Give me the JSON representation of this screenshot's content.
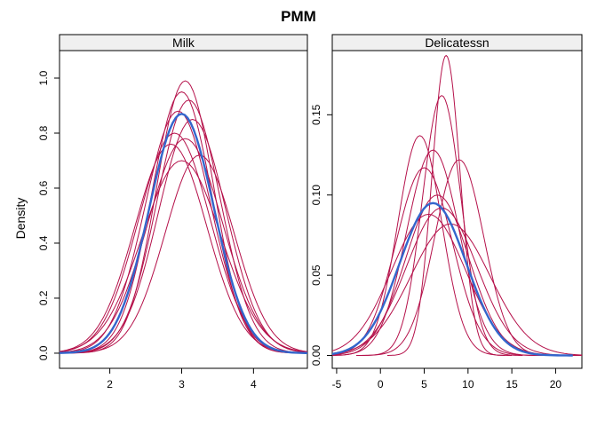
{
  "chart_data": {
    "type": "line",
    "title": "PMM",
    "ylabel": "Density",
    "colors": {
      "imputed": "#b5114a",
      "observed": "#3366cc"
    },
    "panels": [
      {
        "strip_label": "Milk",
        "xlim": [
          1.3,
          4.75
        ],
        "ylim": [
          -0.055,
          1.1
        ],
        "xticks": [
          2,
          3,
          4
        ],
        "yticks": [
          0.0,
          0.2,
          0.4,
          0.6,
          0.8,
          1.0
        ],
        "ytick_labels": [
          "0.0",
          "0.2",
          "0.4",
          "0.6",
          "0.8",
          "1.0"
        ],
        "observed": {
          "center": 3.0,
          "sd": 0.45,
          "peak": 0.87
        },
        "imputed": [
          {
            "center": 3.05,
            "sd": 0.4,
            "peak": 0.99
          },
          {
            "center": 3.0,
            "sd": 0.42,
            "peak": 0.95
          },
          {
            "center": 3.1,
            "sd": 0.44,
            "peak": 0.92
          },
          {
            "center": 2.95,
            "sd": 0.46,
            "peak": 0.88
          },
          {
            "center": 3.15,
            "sd": 0.47,
            "peak": 0.85
          },
          {
            "center": 2.9,
            "sd": 0.5,
            "peak": 0.8
          },
          {
            "center": 3.05,
            "sd": 0.52,
            "peak": 0.78
          },
          {
            "center": 3.25,
            "sd": 0.48,
            "peak": 0.72
          },
          {
            "center": 3.0,
            "sd": 0.55,
            "peak": 0.7
          },
          {
            "center": 2.85,
            "sd": 0.5,
            "peak": 0.76
          }
        ]
      },
      {
        "strip_label": "Delicatessn",
        "xlim": [
          -5.5,
          23
        ],
        "ylim": [
          -0.008,
          0.19
        ],
        "xticks": [
          -5,
          0,
          5,
          10,
          15,
          20
        ],
        "yticks": [
          0.0,
          0.05,
          0.1,
          0.15
        ],
        "ytick_labels": [
          "0.00",
          "0.05",
          "0.10",
          "0.15"
        ],
        "observed": {
          "center": 6.0,
          "sd": 3.8,
          "peak": 0.095
        },
        "imputed": [
          {
            "center": 7.5,
            "sd": 1.6,
            "peak": 0.187
          },
          {
            "center": 7.0,
            "sd": 2.2,
            "peak": 0.162
          },
          {
            "center": 4.5,
            "sd": 2.5,
            "peak": 0.137
          },
          {
            "center": 6.0,
            "sd": 3.0,
            "peak": 0.128
          },
          {
            "center": 9.0,
            "sd": 2.8,
            "peak": 0.122
          },
          {
            "center": 5.0,
            "sd": 3.2,
            "peak": 0.117
          },
          {
            "center": 6.5,
            "sd": 3.6,
            "peak": 0.1
          },
          {
            "center": 7.0,
            "sd": 4.0,
            "peak": 0.092
          },
          {
            "center": 5.5,
            "sd": 4.2,
            "peak": 0.088
          },
          {
            "center": 8.0,
            "sd": 4.5,
            "peak": 0.082
          }
        ]
      }
    ]
  }
}
